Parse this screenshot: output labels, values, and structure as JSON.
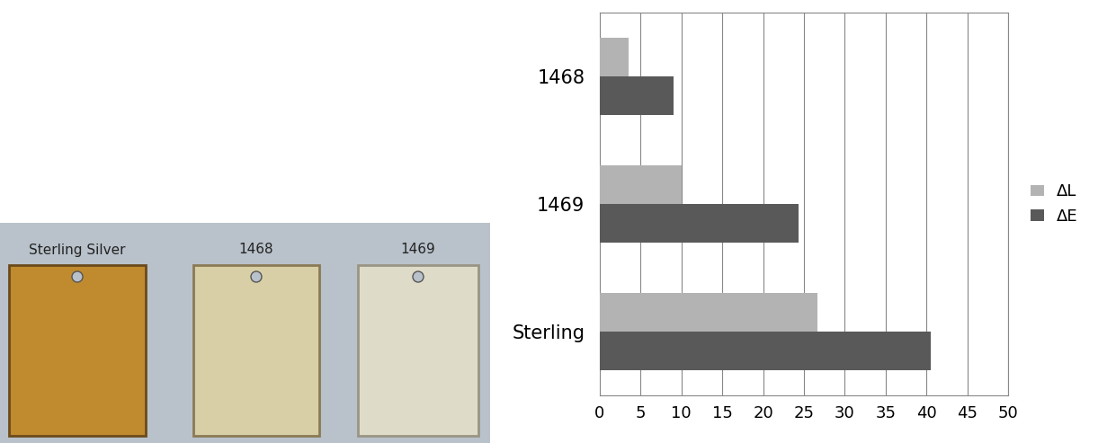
{
  "chart_data": {
    "type": "bar",
    "orientation": "horizontal",
    "categories": [
      "1468",
      "1469",
      "Sterling"
    ],
    "series": [
      {
        "name": "ΔL",
        "color": "#b3b3b3",
        "values": [
          3.5,
          10,
          26.7
        ]
      },
      {
        "name": "ΔE",
        "color": "#595959",
        "values": [
          9,
          24.3,
          40.5
        ]
      }
    ],
    "xlim": [
      0,
      50
    ],
    "xticks": [
      0,
      5,
      10,
      15,
      20,
      25,
      30,
      35,
      40,
      45,
      50
    ],
    "grid": true,
    "legend": "right"
  },
  "photo": {
    "labels": [
      "Sterling Silver",
      "1468",
      "1469"
    ]
  }
}
